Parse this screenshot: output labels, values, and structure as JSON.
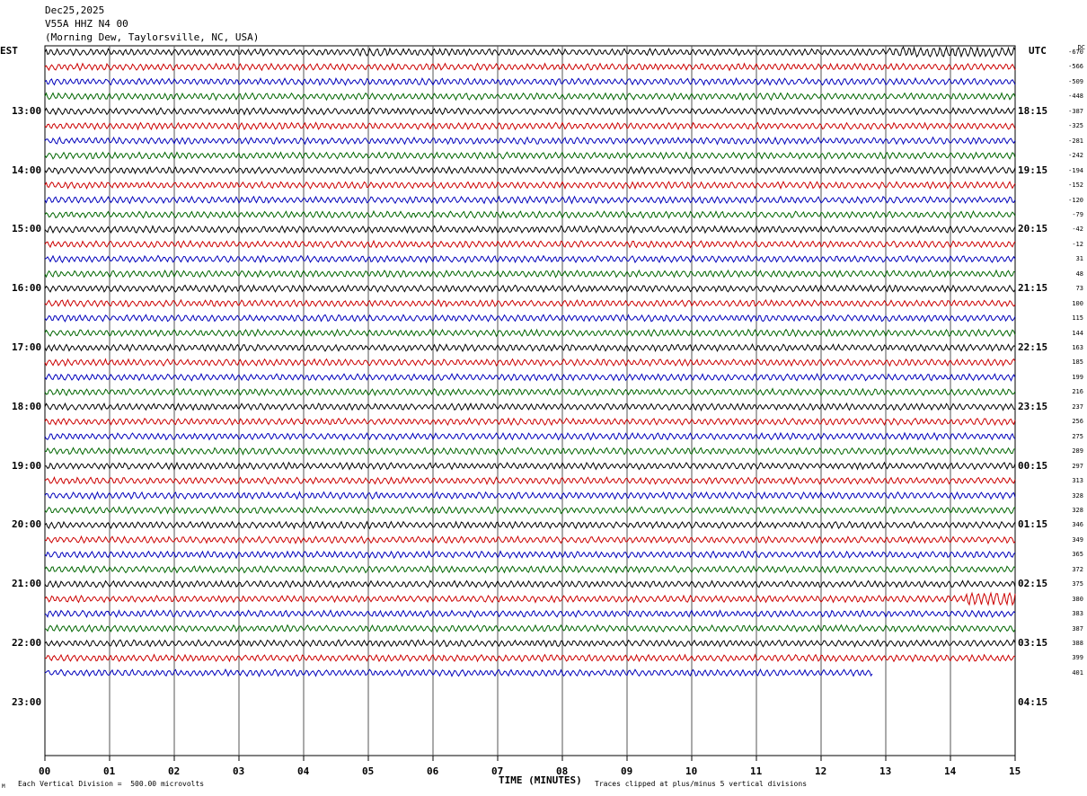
{
  "header": {
    "date": "Dec25,2025",
    "station": "V55A HHZ N4 00",
    "location": "(Morning Dew, Taylorsville, NC, USA)"
  },
  "left_axis_label": "EST",
  "right_axis_label": "UTC",
  "dc_label": "DC",
  "chart_data": {
    "type": "line",
    "title": "",
    "xlabel": "TIME (MINUTES)",
    "x_ticks": [
      "00",
      "01",
      "02",
      "03",
      "04",
      "05",
      "06",
      "07",
      "08",
      "09",
      "10",
      "11",
      "12",
      "13",
      "14",
      "15"
    ],
    "xlim": [
      0,
      15
    ],
    "rows_per_hour": 4,
    "minutes_per_row": 15,
    "est_labels": [
      "13:00",
      "14:00",
      "15:00",
      "16:00",
      "17:00",
      "18:00",
      "19:00",
      "20:00",
      "21:00",
      "22:00",
      "23:00"
    ],
    "utc_labels": [
      "18:15",
      "19:15",
      "20:15",
      "21:15",
      "22:15",
      "23:15",
      "00:15",
      "01:15",
      "02:15",
      "03:15",
      "04:15"
    ],
    "trace_colors": [
      "#000000",
      "#cc0000",
      "#0000bb",
      "#006600"
    ],
    "trace_count": 43,
    "last_trace_end_minute": 12.8,
    "dc_offsets": [
      "-670",
      "-566",
      "-509",
      "-448",
      "-387",
      "-325",
      "-281",
      "-242",
      "-194",
      "-152",
      "-120",
      "-79",
      "-42",
      "-12",
      "31",
      "48",
      "73",
      "100",
      "115",
      "144",
      "163",
      "185",
      "199",
      "216",
      "237",
      "256",
      "275",
      "289",
      "297",
      "313",
      "328",
      "328",
      "346",
      "349",
      "365",
      "372",
      "375",
      "380",
      "383",
      "387",
      "388",
      "399",
      "401"
    ]
  },
  "footer": {
    "scale_note": "Each Vertical Division =  500.00 microvolts",
    "clip_note": "Traces clipped at plus/minus 5 vertical divisions",
    "corner_mark": "M"
  }
}
